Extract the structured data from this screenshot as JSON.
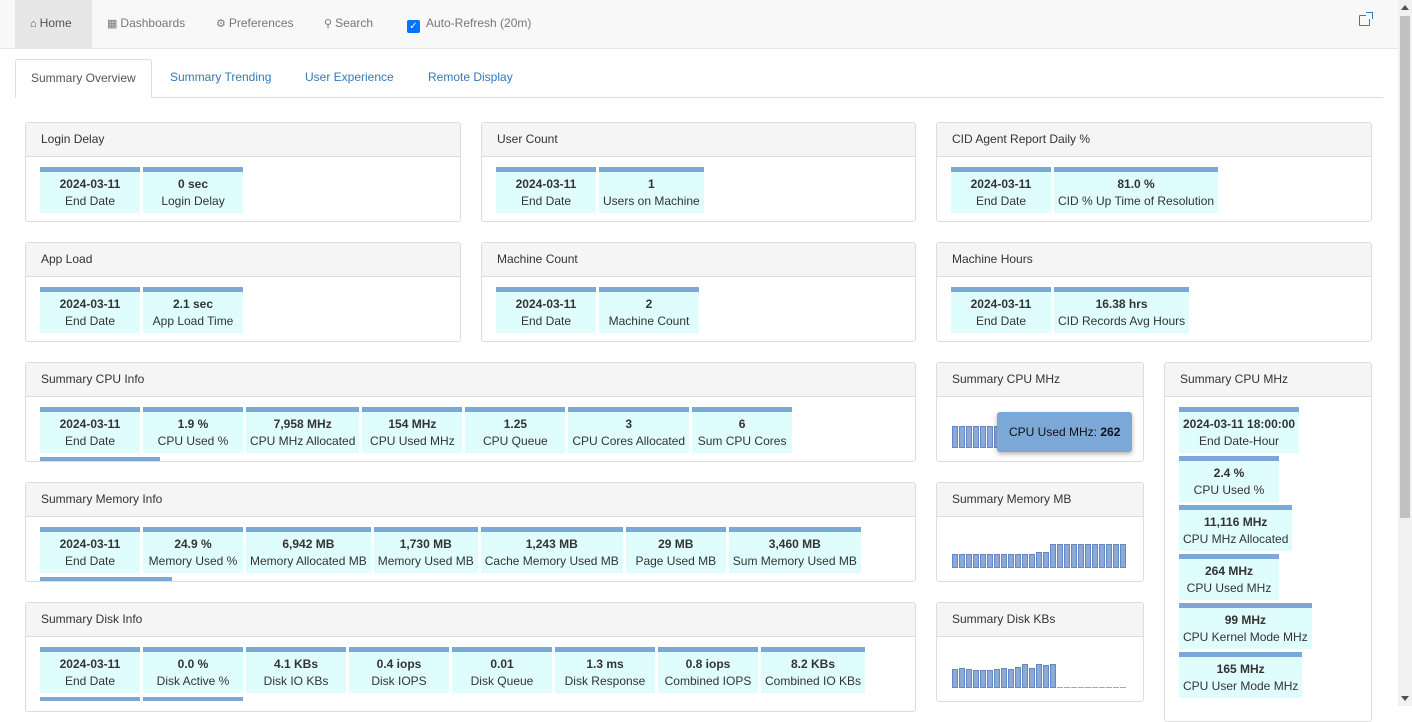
{
  "nav": {
    "home": "Home",
    "dashboards": "Dashboards",
    "preferences": "Preferences",
    "search": "Search",
    "autorefresh": "Auto-Refresh (20m)"
  },
  "tabs": [
    "Summary Overview",
    "Summary Trending",
    "User Experience",
    "Remote Display"
  ],
  "panels": {
    "login_delay": {
      "title": "Login Delay",
      "metrics": [
        {
          "value": "2024-03-11",
          "label": "End Date"
        },
        {
          "value": "0 sec",
          "label": "Login Delay"
        }
      ]
    },
    "user_count": {
      "title": "User Count",
      "metrics": [
        {
          "value": "2024-03-11",
          "label": "End Date"
        },
        {
          "value": "1",
          "label": "Users on Machine"
        }
      ]
    },
    "cid_agent": {
      "title": "CID Agent Report Daily %",
      "metrics": [
        {
          "value": "2024-03-11",
          "label": "End Date"
        },
        {
          "value": "81.0  %",
          "label": "CID % Up Time of Resolution"
        }
      ]
    },
    "app_load": {
      "title": "App Load",
      "metrics": [
        {
          "value": "2024-03-11",
          "label": "End Date"
        },
        {
          "value": "2.1 sec",
          "label": "App Load Time"
        }
      ]
    },
    "machine_count": {
      "title": "Machine Count",
      "metrics": [
        {
          "value": "2024-03-11",
          "label": "End Date"
        },
        {
          "value": "2",
          "label": "Machine Count"
        }
      ]
    },
    "machine_hours": {
      "title": "Machine Hours",
      "metrics": [
        {
          "value": "2024-03-11",
          "label": "End Date"
        },
        {
          "value": "16.38 hrs",
          "label": "CID Records Avg Hours"
        }
      ]
    },
    "cpu_info": {
      "title": "Summary CPU Info",
      "metrics": [
        {
          "value": "2024-03-11",
          "label": "End Date"
        },
        {
          "value": "1.9  %",
          "label": "CPU Used %"
        },
        {
          "value": "7,958 MHz",
          "label": "CPU MHz Allocated"
        },
        {
          "value": "154 MHz",
          "label": "CPU Used MHz"
        },
        {
          "value": "1.25",
          "label": "CPU Queue"
        },
        {
          "value": "3",
          "label": "CPU Cores Allocated"
        },
        {
          "value": "6",
          "label": "Sum CPU Cores"
        }
      ]
    },
    "memory_info": {
      "title": "Summary Memory Info",
      "metrics": [
        {
          "value": "2024-03-11",
          "label": "End Date"
        },
        {
          "value": "24.9  %",
          "label": "Memory Used %"
        },
        {
          "value": "6,942 MB",
          "label": "Memory Allocated MB"
        },
        {
          "value": "1,730 MB",
          "label": "Memory Used MB"
        },
        {
          "value": "1,243 MB",
          "label": "Cache Memory Used MB"
        },
        {
          "value": "29 MB",
          "label": "Page Used MB"
        },
        {
          "value": "3,460 MB",
          "label": "Sum Memory Used MB"
        }
      ]
    },
    "disk_info": {
      "title": "Summary Disk Info",
      "metrics": [
        {
          "value": "2024-03-11",
          "label": "End Date"
        },
        {
          "value": "0.0  %",
          "label": "Disk Active %"
        },
        {
          "value": "4.1 KBs",
          "label": "Disk IO KBs"
        },
        {
          "value": "0.4 iops",
          "label": "Disk IOPS"
        },
        {
          "value": "0.01",
          "label": "Disk Queue"
        },
        {
          "value": "1.3 ms",
          "label": "Disk Response"
        },
        {
          "value": "0.8 iops",
          "label": "Combined IOPS"
        },
        {
          "value": "8.2 KBs",
          "label": "Combined IO KBs"
        }
      ]
    },
    "cpu_mhz_spark": {
      "title": "Summary CPU MHz",
      "tooltip_label": "CPU Used MHz:",
      "tooltip_value": "262"
    },
    "memory_mb_spark": {
      "title": "Summary Memory MB"
    },
    "disk_kbs_spark": {
      "title": "Summary Disk KBs"
    },
    "cpu_mhz_side": {
      "title": "Summary CPU MHz",
      "metrics": [
        {
          "value": "2024-03-11 18:00:00",
          "label": "End Date-Hour"
        },
        {
          "value": "2.4  %",
          "label": "CPU Used %"
        },
        {
          "value": "11,116 MHz",
          "label": "CPU MHz Allocated"
        },
        {
          "value": "264 MHz",
          "label": "CPU Used MHz"
        },
        {
          "value": "99 MHz",
          "label": "CPU Kernel Mode MHz"
        },
        {
          "value": "165 MHz",
          "label": "CPU User Mode MHz"
        }
      ]
    }
  },
  "sparklines": {
    "cpu": [
      9,
      9,
      9,
      9,
      9,
      9,
      9,
      9,
      9,
      9,
      9,
      9,
      9,
      10,
      9,
      9,
      9,
      9,
      9,
      9,
      9,
      9,
      9,
      9,
      9
    ],
    "memory": [
      9,
      9,
      9,
      9,
      9,
      9,
      9,
      9,
      9,
      9,
      9,
      9,
      10,
      10,
      15,
      15,
      15,
      15,
      15,
      15,
      15,
      15,
      15,
      15,
      15
    ],
    "disk": [
      15,
      16,
      15,
      14,
      14,
      14,
      15,
      16,
      15,
      17,
      19,
      16,
      19,
      18,
      19,
      0,
      0,
      0,
      0,
      0,
      0,
      0,
      0,
      0,
      0
    ]
  }
}
